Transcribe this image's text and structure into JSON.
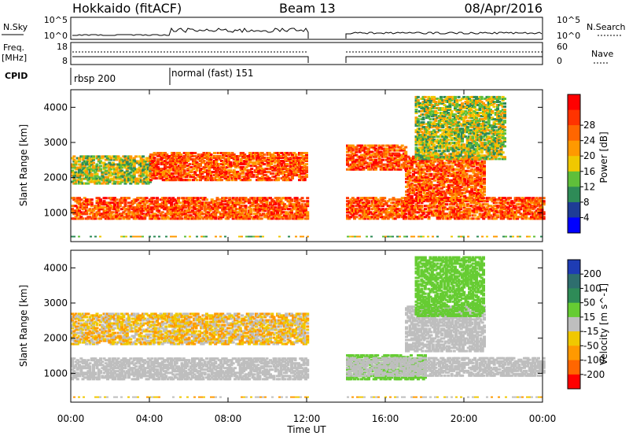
{
  "header": {
    "station": "Hokkaido (fitACF)",
    "beam": "Beam 13",
    "date": "08/Apr/2016"
  },
  "panels": {
    "nsky_label": "N.Sky",
    "nsky_ticks": [
      "10^5",
      "10^0"
    ],
    "nsearch_label": "N.Search",
    "nsearch_ticks": [
      "10^5",
      "10^0"
    ],
    "freq_label": "Freq.",
    "freq_unit": "[MHz]",
    "freq_ticks": [
      "18",
      "8"
    ],
    "nave_label": "Nave",
    "nave_ticks": [
      "60",
      "0"
    ],
    "cpid_label": "CPID",
    "cpid_segments": [
      "rbsp 200",
      "normal (fast) 151"
    ]
  },
  "colors": {
    "nsky_trace": "#000000",
    "freq_trace": "#000000",
    "ground_scatter": "#bebebe"
  },
  "chart_data": [
    {
      "type": "heatmap",
      "title": "Power",
      "xlabel": "Time UT",
      "ylabel": "Slant Range [km]",
      "x_ticks": [
        "00:00",
        "04:00",
        "08:00",
        "12:00",
        "16:00",
        "20:00",
        "00:00"
      ],
      "y_ticks": [
        "1000",
        "2000",
        "3000",
        "4000"
      ],
      "xlim_hours": [
        0,
        24
      ],
      "ylim_km": [
        180,
        4500
      ],
      "data_gap_hours": [
        12.0,
        14.0
      ],
      "colorbar_label": "Power [dB]",
      "colorbar_ticks": [
        "4",
        "8",
        "12",
        "16",
        "20",
        "24",
        "28"
      ],
      "colorbar_colors": [
        "#0000ff",
        "#1e3c96",
        "#2e8b57",
        "#5fbf3a",
        "#f0c800",
        "#ff9900",
        "#ff6600",
        "#ff3300",
        "#ff0000"
      ],
      "legend": "right",
      "bands": [
        {
          "t0": 0.0,
          "t1": 12.0,
          "r0": 800,
          "r1": 1400,
          "level": "high"
        },
        {
          "t0": 0.0,
          "t1": 4.0,
          "r0": 1800,
          "r1": 2600,
          "level": "mid"
        },
        {
          "t0": 4.0,
          "t1": 12.0,
          "r0": 1900,
          "r1": 2700,
          "level": "high"
        },
        {
          "t0": 14.0,
          "t1": 24.0,
          "r0": 800,
          "r1": 1400,
          "level": "high"
        },
        {
          "t0": 14.0,
          "t1": 17.0,
          "r0": 2200,
          "r1": 2900,
          "level": "high"
        },
        {
          "t0": 17.0,
          "t1": 21.0,
          "r0": 1300,
          "r1": 2600,
          "level": "high"
        },
        {
          "t0": 17.5,
          "t1": 22.0,
          "r0": 2500,
          "r1": 4300,
          "level": "mid"
        }
      ]
    },
    {
      "type": "heatmap",
      "title": "Velocity",
      "xlabel": "Time UT",
      "ylabel": "Slant Range [km]",
      "x_ticks": [
        "00:00",
        "04:00",
        "08:00",
        "12:00",
        "16:00",
        "20:00",
        "00:00"
      ],
      "y_ticks": [
        "1000",
        "2000",
        "3000",
        "4000"
      ],
      "xlim_hours": [
        0,
        24
      ],
      "ylim_km": [
        180,
        4500
      ],
      "data_gap_hours": [
        12.0,
        14.0
      ],
      "colorbar_label": "Velocity [m s^-1]",
      "colorbar_ticks": [
        "200",
        "100",
        "50",
        "15",
        "-15",
        "-50",
        "-100",
        "-200"
      ],
      "colorbar_colors": [
        "#1e3cb4",
        "#2e6e6e",
        "#2e8b57",
        "#66cc33",
        "#bebebe",
        "#f0c800",
        "#ff9900",
        "#ff6600",
        "#ff0000"
      ],
      "legend": "right",
      "bands": [
        {
          "t0": 0.0,
          "t1": 12.0,
          "r0": 800,
          "r1": 1400,
          "level": "ground"
        },
        {
          "t0": 0.0,
          "t1": 12.0,
          "r0": 1800,
          "r1": 2700,
          "level": "neg"
        },
        {
          "t0": 14.0,
          "t1": 18.0,
          "r0": 800,
          "r1": 1500,
          "level": "pos"
        },
        {
          "t0": 14.0,
          "t1": 24.0,
          "r0": 900,
          "r1": 1400,
          "level": "ground"
        },
        {
          "t0": 17.0,
          "t1": 21.0,
          "r0": 1600,
          "r1": 2900,
          "level": "ground"
        },
        {
          "t0": 17.5,
          "t1": 21.0,
          "r0": 2600,
          "r1": 4300,
          "level": "pos"
        }
      ]
    }
  ]
}
